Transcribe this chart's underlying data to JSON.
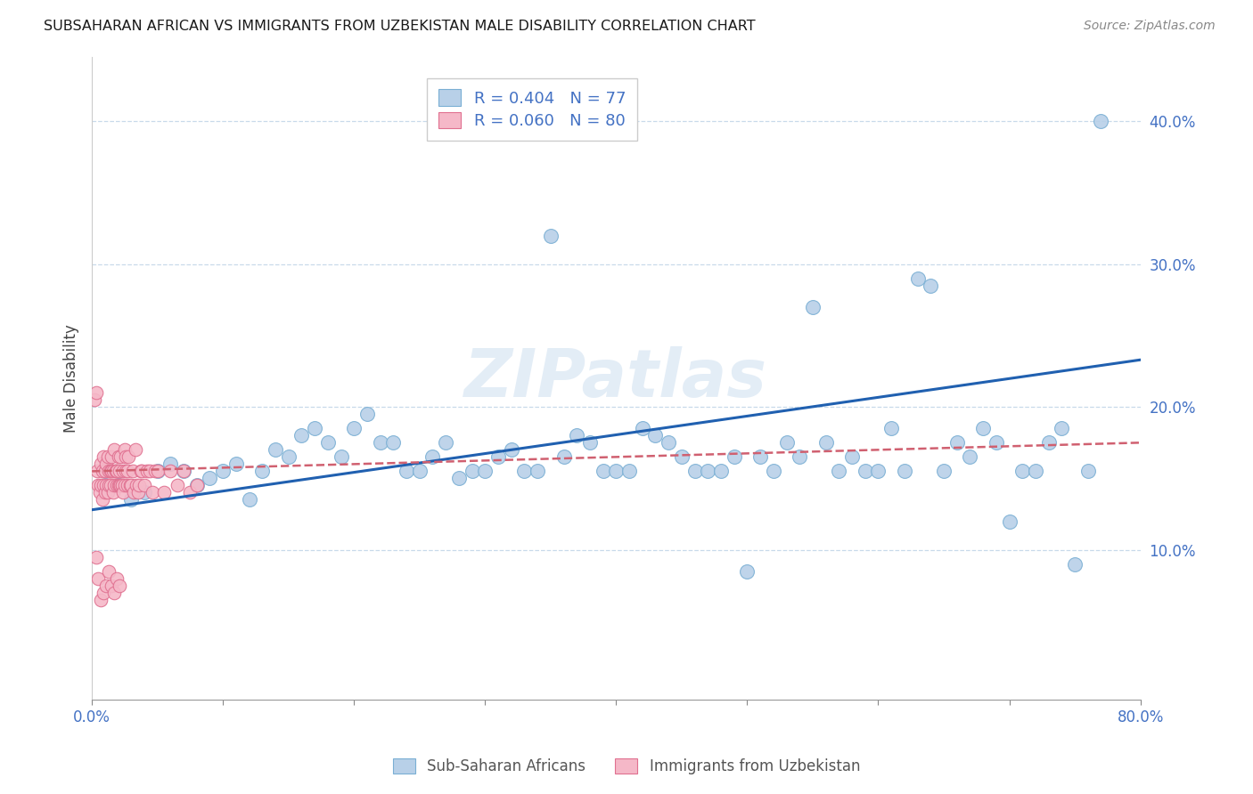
{
  "title": "SUBSAHARAN AFRICAN VS IMMIGRANTS FROM UZBEKISTAN MALE DISABILITY CORRELATION CHART",
  "source": "Source: ZipAtlas.com",
  "ylabel": "Male Disability",
  "xlim": [
    0.0,
    0.8
  ],
  "ylim": [
    -0.005,
    0.445
  ],
  "blue_R": 0.404,
  "blue_N": 77,
  "pink_R": 0.06,
  "pink_N": 80,
  "blue_color": "#b8d0e8",
  "blue_edge": "#7aafd4",
  "pink_color": "#f5b8c8",
  "pink_edge": "#e07090",
  "blue_line_color": "#2060b0",
  "pink_line_color": "#d06070",
  "legend_blue_label": "Sub-Saharan Africans",
  "legend_pink_label": "Immigrants from Uzbekistan",
  "watermark": "ZIPatlas",
  "blue_x": [
    0.01,
    0.02,
    0.03,
    0.04,
    0.05,
    0.06,
    0.07,
    0.08,
    0.09,
    0.1,
    0.11,
    0.12,
    0.13,
    0.14,
    0.15,
    0.16,
    0.17,
    0.18,
    0.19,
    0.2,
    0.21,
    0.22,
    0.23,
    0.24,
    0.25,
    0.26,
    0.27,
    0.28,
    0.29,
    0.3,
    0.31,
    0.32,
    0.33,
    0.34,
    0.35,
    0.36,
    0.37,
    0.38,
    0.39,
    0.4,
    0.41,
    0.42,
    0.43,
    0.44,
    0.45,
    0.46,
    0.47,
    0.48,
    0.49,
    0.5,
    0.51,
    0.52,
    0.53,
    0.54,
    0.55,
    0.56,
    0.57,
    0.58,
    0.59,
    0.6,
    0.61,
    0.62,
    0.63,
    0.64,
    0.65,
    0.66,
    0.67,
    0.68,
    0.69,
    0.7,
    0.71,
    0.72,
    0.73,
    0.74,
    0.75,
    0.76,
    0.77
  ],
  "blue_y": [
    0.155,
    0.145,
    0.135,
    0.14,
    0.155,
    0.16,
    0.155,
    0.145,
    0.15,
    0.155,
    0.16,
    0.135,
    0.155,
    0.17,
    0.165,
    0.18,
    0.185,
    0.175,
    0.165,
    0.185,
    0.195,
    0.175,
    0.175,
    0.155,
    0.155,
    0.165,
    0.175,
    0.15,
    0.155,
    0.155,
    0.165,
    0.17,
    0.155,
    0.155,
    0.32,
    0.165,
    0.18,
    0.175,
    0.155,
    0.155,
    0.155,
    0.185,
    0.18,
    0.175,
    0.165,
    0.155,
    0.155,
    0.155,
    0.165,
    0.085,
    0.165,
    0.155,
    0.175,
    0.165,
    0.27,
    0.175,
    0.155,
    0.165,
    0.155,
    0.155,
    0.185,
    0.155,
    0.29,
    0.285,
    0.155,
    0.175,
    0.165,
    0.185,
    0.175,
    0.12,
    0.155,
    0.155,
    0.175,
    0.185,
    0.09,
    0.155,
    0.4
  ],
  "pink_x": [
    0.002,
    0.003,
    0.004,
    0.005,
    0.006,
    0.007,
    0.007,
    0.008,
    0.008,
    0.009,
    0.009,
    0.01,
    0.01,
    0.011,
    0.011,
    0.012,
    0.012,
    0.013,
    0.013,
    0.014,
    0.014,
    0.015,
    0.015,
    0.016,
    0.016,
    0.017,
    0.017,
    0.018,
    0.018,
    0.019,
    0.019,
    0.02,
    0.02,
    0.021,
    0.021,
    0.022,
    0.022,
    0.023,
    0.023,
    0.024,
    0.024,
    0.025,
    0.025,
    0.026,
    0.026,
    0.027,
    0.027,
    0.028,
    0.029,
    0.03,
    0.031,
    0.032,
    0.033,
    0.034,
    0.035,
    0.036,
    0.037,
    0.038,
    0.04,
    0.042,
    0.044,
    0.046,
    0.048,
    0.05,
    0.055,
    0.06,
    0.065,
    0.07,
    0.075,
    0.08,
    0.003,
    0.005,
    0.007,
    0.009,
    0.011,
    0.013,
    0.015,
    0.017,
    0.019,
    0.021
  ],
  "pink_y": [
    0.205,
    0.21,
    0.155,
    0.145,
    0.14,
    0.145,
    0.16,
    0.155,
    0.135,
    0.145,
    0.165,
    0.155,
    0.14,
    0.16,
    0.145,
    0.165,
    0.14,
    0.155,
    0.145,
    0.155,
    0.145,
    0.155,
    0.165,
    0.155,
    0.14,
    0.17,
    0.145,
    0.155,
    0.155,
    0.145,
    0.155,
    0.165,
    0.145,
    0.155,
    0.145,
    0.145,
    0.165,
    0.145,
    0.145,
    0.155,
    0.14,
    0.17,
    0.145,
    0.155,
    0.165,
    0.145,
    0.155,
    0.165,
    0.145,
    0.145,
    0.155,
    0.14,
    0.17,
    0.145,
    0.14,
    0.145,
    0.155,
    0.155,
    0.145,
    0.155,
    0.155,
    0.14,
    0.155,
    0.155,
    0.14,
    0.155,
    0.145,
    0.155,
    0.14,
    0.145,
    0.095,
    0.08,
    0.065,
    0.07,
    0.075,
    0.085,
    0.075,
    0.07,
    0.08,
    0.075
  ],
  "blue_trend_x0": 0.0,
  "blue_trend_y0": 0.128,
  "blue_trend_x1": 0.8,
  "blue_trend_y1": 0.233,
  "pink_trend_x0": 0.0,
  "pink_trend_y0": 0.155,
  "pink_trend_x1": 0.8,
  "pink_trend_y1": 0.175
}
